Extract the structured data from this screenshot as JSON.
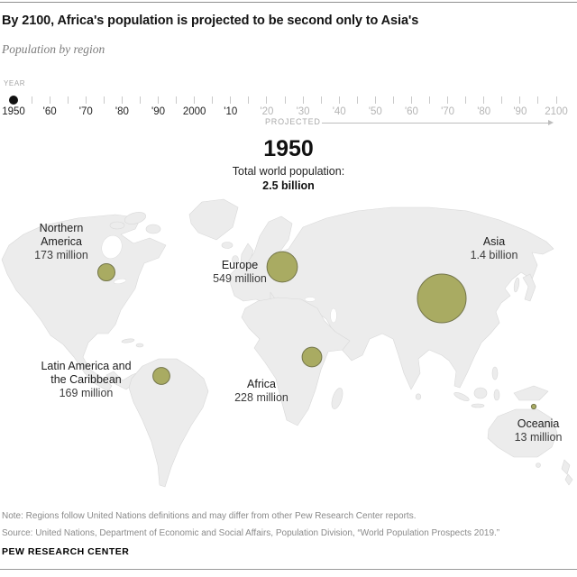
{
  "header": {
    "title": "By 2100, Africa's population is projected to be second only to Asia's",
    "subtitle": "Population by region"
  },
  "timeline": {
    "axis_label": "YEAR",
    "start_year": 1950,
    "end_year": 2100,
    "tick_interval_years": 5,
    "current_year": "1950",
    "projected_label": "PROJECTED",
    "decade_labels": [
      {
        "label": "1950",
        "projected": false
      },
      {
        "label": "'60",
        "projected": false
      },
      {
        "label": "'70",
        "projected": false
      },
      {
        "label": "'80",
        "projected": false
      },
      {
        "label": "'90",
        "projected": false
      },
      {
        "label": "2000",
        "projected": false
      },
      {
        "label": "'10",
        "projected": false
      },
      {
        "label": "'20",
        "projected": true
      },
      {
        "label": "'30",
        "projected": true
      },
      {
        "label": "'40",
        "projected": true
      },
      {
        "label": "'50",
        "projected": true
      },
      {
        "label": "'60",
        "projected": true
      },
      {
        "label": "'70",
        "projected": true
      },
      {
        "label": "'80",
        "projected": true
      },
      {
        "label": "'90",
        "projected": true
      },
      {
        "label": "2100",
        "projected": true
      }
    ]
  },
  "display": {
    "year": "1950",
    "total_label": "Total world population:",
    "total_value": "2.5 billion"
  },
  "chart_data": {
    "type": "bubble",
    "title": "Population by region",
    "year": "1950",
    "total_world_population": "2.5 billion",
    "unit": "millions of people",
    "scale_note": "bubble area proportional to population; Asia (1400M) = 27px radius",
    "bubble_color": "#a9ab62",
    "map_land_color": "#ececec",
    "regions": [
      {
        "id": "northern-america",
        "name": "Northern America",
        "value_millions": 173,
        "display_value": "173 million"
      },
      {
        "id": "europe",
        "name": "Europe",
        "value_millions": 549,
        "display_value": "549 million"
      },
      {
        "id": "asia",
        "name": "Asia",
        "value_millions": 1400,
        "display_value": "1.4 billion"
      },
      {
        "id": "latin-america",
        "name": "Latin America and the Caribbean",
        "value_millions": 169,
        "display_value": "169 million"
      },
      {
        "id": "africa",
        "name": "Africa",
        "value_millions": 228,
        "display_value": "228 million"
      },
      {
        "id": "oceania",
        "name": "Oceania",
        "value_millions": 13,
        "display_value": "13 million"
      }
    ]
  },
  "footer": {
    "note": "Note: Regions follow United Nations definitions and may differ from other Pew Research Center reports.",
    "source": "Source: United Nations, Department of Economic and Social Affairs, Population Division, “World Population Prospects 2019.”",
    "brand": "PEW RESEARCH CENTER"
  }
}
